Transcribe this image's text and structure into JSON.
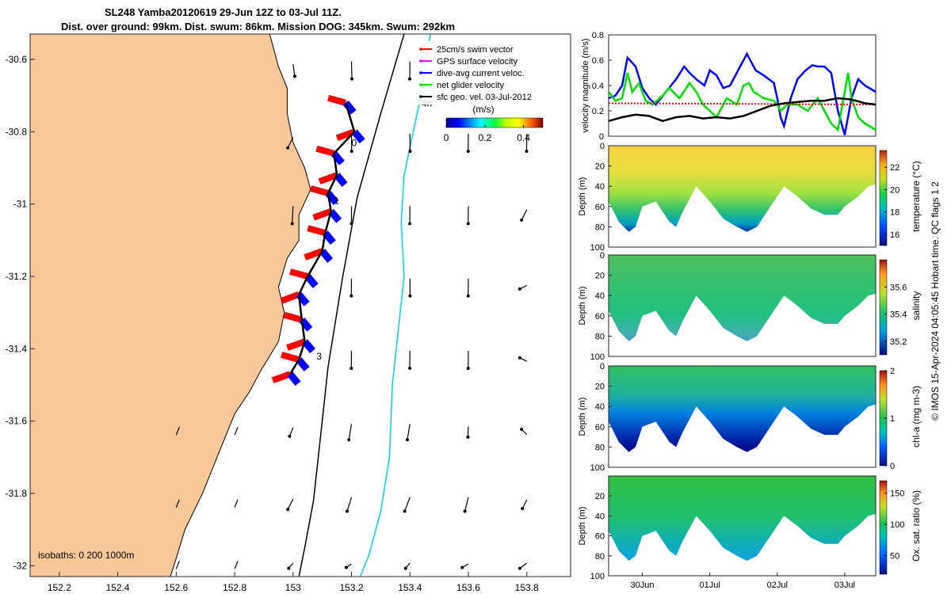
{
  "title": {
    "line1": "SL248 Yamba20120619 29-Jun 12Z to 03-Jul 11Z.",
    "line2": "Dist. over ground: 99km. Dist. swum: 86km. Mission DOG: 345km. Swum: 292km"
  },
  "colors": {
    "land": "#f9c898",
    "swim": "#ff0000",
    "gps": "#ff00ff",
    "dive": "#0000ff",
    "net": "#00e000",
    "sfc": "#000000",
    "iso200": "#000000",
    "iso1000": "#00d8d8"
  },
  "chart_data": [
    {
      "type": "map",
      "name": "track-map",
      "xlim": [
        152.1,
        153.95
      ],
      "ylim": [
        -32.03,
        -30.53
      ],
      "x_ticks": [
        "152.2",
        "152.4",
        "152.6",
        "152.8",
        "153",
        "153.2",
        "153.4",
        "153.6",
        "153.8"
      ],
      "x_tick_values": [
        152.2,
        152.4,
        152.6,
        152.8,
        153.0,
        153.2,
        153.4,
        153.6,
        153.8
      ],
      "y_ticks": [
        "-30.6",
        "-30.8",
        "-31",
        "-31.2",
        "-31.4",
        "-31.6",
        "-31.8",
        "-32"
      ],
      "y_tick_values": [
        -30.6,
        -30.8,
        -31.0,
        -31.2,
        -31.4,
        -31.6,
        -31.8,
        -32.0
      ],
      "legend": [
        {
          "label": "25cm/s swim vector",
          "color_key": "swim"
        },
        {
          "label": "GPS surface velocity",
          "color_key": "gps"
        },
        {
          "label": "dive-avg current veloc.",
          "color_key": "dive"
        },
        {
          "label": "net glider velocity",
          "color_key": "net"
        },
        {
          "label": "sfc geo. vel. 03-Jul-2012",
          "color_key": "sfc"
        }
      ],
      "colorbar": {
        "label": "(m/s)",
        "ticks": [
          "0",
          "0.2",
          "0.4"
        ],
        "tick_values": [
          0,
          0.2,
          0.4
        ],
        "range": [
          0,
          0.5
        ]
      },
      "isobaths_label": "isobaths: 0   200  1000m",
      "day_labels": [
        {
          "text": "0",
          "lon": 153.2,
          "lat": -30.84
        },
        {
          "text": "1",
          "lon": 153.14,
          "lat": -31.0
        },
        {
          "text": "3",
          "lon": 153.08,
          "lat": -31.43
        },
        {
          "text": "4h",
          "lon": 153.44,
          "lat": -30.73
        }
      ],
      "track": [
        [
          153.18,
          -30.72
        ],
        [
          153.21,
          -30.8
        ],
        [
          153.14,
          -30.86
        ],
        [
          153.15,
          -30.92
        ],
        [
          153.12,
          -30.97
        ],
        [
          153.13,
          -31.02
        ],
        [
          153.11,
          -31.08
        ],
        [
          153.1,
          -31.13
        ],
        [
          153.05,
          -31.2
        ],
        [
          153.02,
          -31.25
        ],
        [
          153.03,
          -31.32
        ],
        [
          153.04,
          -31.38
        ],
        [
          153.02,
          -31.43
        ],
        [
          152.99,
          -31.47
        ]
      ],
      "coast": [
        [
          152.1,
          -30.53
        ],
        [
          152.92,
          -30.53
        ],
        [
          152.95,
          -30.62
        ],
        [
          152.98,
          -30.68
        ],
        [
          152.98,
          -30.75
        ],
        [
          153.0,
          -30.83
        ],
        [
          153.04,
          -30.9
        ],
        [
          153.06,
          -30.96
        ],
        [
          153.02,
          -31.03
        ],
        [
          153.02,
          -31.1
        ],
        [
          152.98,
          -31.15
        ],
        [
          152.95,
          -31.23
        ],
        [
          152.97,
          -31.3
        ],
        [
          152.95,
          -31.38
        ],
        [
          152.89,
          -31.46
        ],
        [
          152.85,
          -31.52
        ],
        [
          152.8,
          -31.58
        ],
        [
          152.74,
          -31.7
        ],
        [
          152.69,
          -31.8
        ],
        [
          152.63,
          -31.9
        ],
        [
          152.6,
          -31.98
        ],
        [
          152.58,
          -32.03
        ],
        [
          152.1,
          -32.03
        ]
      ],
      "isobath_200": [
        [
          153.38,
          -30.53
        ],
        [
          153.3,
          -30.75
        ],
        [
          153.22,
          -30.98
        ],
        [
          153.17,
          -31.2
        ],
        [
          153.12,
          -31.45
        ],
        [
          153.1,
          -31.6
        ],
        [
          153.07,
          -31.82
        ],
        [
          153.04,
          -31.95
        ],
        [
          153.02,
          -32.03
        ]
      ],
      "isobath_1000": [
        [
          153.47,
          -30.53
        ],
        [
          153.43,
          -30.73
        ],
        [
          153.38,
          -30.92
        ],
        [
          153.37,
          -31.05
        ],
        [
          153.38,
          -31.2
        ],
        [
          153.36,
          -31.35
        ],
        [
          153.34,
          -31.5
        ],
        [
          153.33,
          -31.7
        ],
        [
          153.3,
          -31.85
        ],
        [
          153.26,
          -31.97
        ],
        [
          153.23,
          -32.03
        ]
      ],
      "geo_vectors_lon": [
        153.0,
        153.2,
        153.4,
        153.6,
        153.8
      ],
      "geo_vectors_lat": [
        -30.63,
        -30.83,
        -31.03,
        -31.23,
        -31.43,
        -31.63,
        -31.83,
        -32.0
      ],
      "geo_vectors": [
        [
          0,
          0,
          -0.02,
          -0.15,
          -0.25,
          -0.2,
          -0.18,
          -0.2,
          0.05,
          -0.05,
          0.2,
          -0.05
        ],
        [
          0,
          0,
          -0.02,
          -0.15,
          -0.25,
          -0.2,
          -0.18,
          -0.2,
          0.05,
          -0.05,
          0.2,
          -0.05
        ]
      ]
    },
    {
      "type": "line",
      "name": "velocity-magnitude",
      "ylabel": "velocity magnitude (m/s)",
      "ylim": [
        0,
        0.8
      ],
      "y_ticks": [
        "0",
        "0.2",
        "0.4",
        "0.6",
        "0.8"
      ],
      "y_tick_values": [
        0,
        0.2,
        0.4,
        0.6,
        0.8
      ],
      "xlim": [
        29.5,
        33.46
      ],
      "series": [
        {
          "name": "dive-avg current veloc.",
          "color_key": "dive",
          "x": [
            29.5,
            29.6,
            29.7,
            29.78,
            29.9,
            30.0,
            30.1,
            30.2,
            30.35,
            30.5,
            30.62,
            30.7,
            30.8,
            30.92,
            31.0,
            31.1,
            31.2,
            31.3,
            31.45,
            31.55,
            31.68,
            31.8,
            31.95,
            32.0,
            32.05,
            32.1,
            32.2,
            32.3,
            32.42,
            32.52,
            32.6,
            32.7,
            32.8,
            32.9,
            33.0,
            33.1,
            33.2,
            33.3,
            33.46
          ],
          "y": [
            0.3,
            0.32,
            0.4,
            0.62,
            0.55,
            0.38,
            0.3,
            0.25,
            0.35,
            0.45,
            0.55,
            0.5,
            0.45,
            0.4,
            0.52,
            0.48,
            0.38,
            0.4,
            0.55,
            0.65,
            0.52,
            0.48,
            0.42,
            0.3,
            0.15,
            0.08,
            0.3,
            0.45,
            0.52,
            0.56,
            0.55,
            0.55,
            0.5,
            0.2,
            0.01,
            0.3,
            0.45,
            0.4,
            0.35
          ]
        },
        {
          "name": "net glider velocity",
          "color_key": "net",
          "x": [
            29.5,
            29.6,
            29.7,
            29.78,
            29.85,
            29.95,
            30.05,
            30.15,
            30.3,
            30.4,
            30.55,
            30.7,
            30.8,
            30.9,
            31.0,
            31.1,
            31.25,
            31.4,
            31.5,
            31.58,
            31.65,
            31.8,
            31.95,
            32.0,
            32.05,
            32.15,
            32.3,
            32.45,
            32.6,
            32.8,
            32.9,
            33.0,
            33.05,
            33.1,
            33.2,
            33.3,
            33.46
          ],
          "y": [
            0.35,
            0.28,
            0.3,
            0.5,
            0.35,
            0.42,
            0.28,
            0.25,
            0.32,
            0.38,
            0.3,
            0.42,
            0.35,
            0.25,
            0.2,
            0.15,
            0.3,
            0.25,
            0.4,
            0.42,
            0.35,
            0.3,
            0.28,
            0.25,
            0.2,
            0.25,
            0.25,
            0.2,
            0.3,
            0.1,
            0.05,
            0.35,
            0.5,
            0.3,
            0.15,
            0.1,
            0.05
          ]
        },
        {
          "name": "sfc swim",
          "color_key": "swim",
          "x": [
            29.5,
            33.46
          ],
          "y": [
            0.26,
            0.25
          ]
        },
        {
          "name": "sfc geo. vel.",
          "color_key": "sfc",
          "x": [
            29.5,
            29.7,
            29.9,
            30.1,
            30.3,
            30.5,
            30.7,
            30.9,
            31.1,
            31.3,
            31.5,
            31.7,
            31.9,
            32.1,
            32.3,
            32.5,
            32.7,
            32.9,
            33.1,
            33.3,
            33.46
          ],
          "y": [
            0.12,
            0.15,
            0.17,
            0.16,
            0.12,
            0.15,
            0.16,
            0.14,
            0.15,
            0.14,
            0.16,
            0.2,
            0.24,
            0.26,
            0.27,
            0.28,
            0.28,
            0.3,
            0.29,
            0.26,
            0.25
          ]
        }
      ]
    },
    {
      "type": "heatmap",
      "name": "temperature",
      "ylabel": "Depth (m)",
      "clabel": "temperature (°C)",
      "ylim": [
        0,
        100
      ],
      "y_ticks": [
        "0",
        "20",
        "40",
        "60",
        "80",
        "100"
      ],
      "y_tick_values": [
        0,
        20,
        40,
        60,
        80,
        100
      ],
      "cbar_ticks": [
        "16",
        "18",
        "20",
        "22"
      ],
      "cbar_tick_values": [
        16,
        18,
        20,
        22
      ],
      "crange": [
        15,
        23.5
      ]
    },
    {
      "type": "heatmap",
      "name": "salinity",
      "ylabel": "Depth (m)",
      "clabel": "salinity",
      "ylim": [
        0,
        100
      ],
      "y_ticks": [
        "0",
        "20",
        "40",
        "60",
        "80",
        "100"
      ],
      "y_tick_values": [
        0,
        20,
        40,
        60,
        80,
        100
      ],
      "cbar_ticks": [
        "35.2",
        "35.4",
        "35.6"
      ],
      "cbar_tick_values": [
        35.2,
        35.4,
        35.6
      ],
      "crange": [
        35.1,
        35.8
      ]
    },
    {
      "type": "heatmap",
      "name": "chl-a",
      "ylabel": "Depth (m)",
      "clabel": "chl-a (mg m-3)",
      "ylim": [
        0,
        100
      ],
      "y_ticks": [
        "0",
        "20",
        "40",
        "60",
        "80",
        "100"
      ],
      "y_tick_values": [
        0,
        20,
        40,
        60,
        80,
        100
      ],
      "cbar_ticks": [
        "0",
        "1",
        "2"
      ],
      "cbar_tick_values": [
        0,
        1,
        2
      ],
      "crange": [
        0,
        2
      ]
    },
    {
      "type": "heatmap",
      "name": "oxygen",
      "ylabel": "Depth (m)",
      "clabel": "Ox. sat. ratio (%)",
      "ylim": [
        0,
        100
      ],
      "y_ticks": [
        "20",
        "40",
        "60",
        "80",
        "100"
      ],
      "y_tick_values": [
        20,
        40,
        60,
        80,
        100
      ],
      "cbar_ticks": [
        "50",
        "100",
        "150"
      ],
      "cbar_tick_values": [
        50,
        100,
        150
      ],
      "crange": [
        20,
        170
      ],
      "x_ticks": [
        "30Jun",
        "01Jul",
        "02Jul",
        "03Jul"
      ],
      "x_tick_values": [
        30.0,
        31.0,
        32.0,
        33.0
      ]
    }
  ],
  "section_bottom": {
    "x": [
      29.5,
      29.65,
      29.8,
      29.9,
      30.0,
      30.2,
      30.4,
      30.5,
      30.6,
      30.8,
      31.0,
      31.2,
      31.4,
      31.55,
      31.7,
      31.9,
      32.1,
      32.3,
      32.5,
      32.7,
      32.9,
      33.0,
      33.2,
      33.35,
      33.46
    ],
    "y": [
      55,
      75,
      85,
      80,
      60,
      55,
      75,
      80,
      65,
      40,
      55,
      72,
      80,
      85,
      80,
      60,
      40,
      50,
      62,
      68,
      68,
      60,
      50,
      40,
      38
    ]
  },
  "footer": "© IMOS 15-Apr-2024 04:05:45 Hobart time. QC flags 1  2"
}
